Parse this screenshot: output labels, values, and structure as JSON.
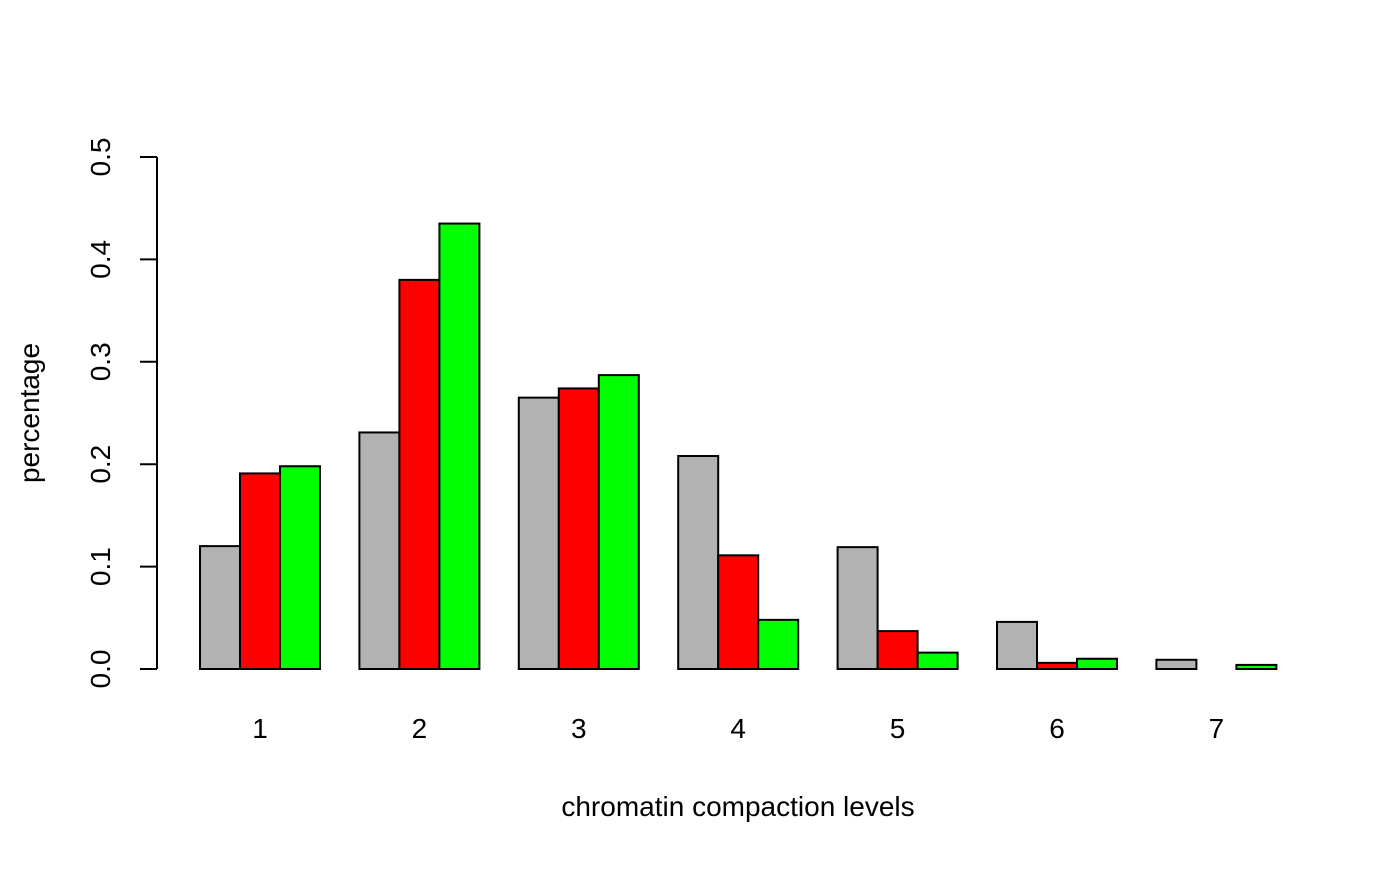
{
  "chart_data": {
    "type": "bar",
    "xlabel": "chromatin compaction levels",
    "ylabel": "percentage",
    "ylim": [
      0,
      0.5
    ],
    "yticks": [
      "0.0",
      "0.1",
      "0.2",
      "0.3",
      "0.4",
      "0.5"
    ],
    "categories": [
      "1",
      "2",
      "3",
      "4",
      "5",
      "6",
      "7"
    ],
    "grid": false,
    "legend": "none",
    "colors": [
      "#b2b2b2",
      "#ff0000",
      "#00ff00"
    ],
    "series": [
      {
        "values": [
          0.12,
          0.231,
          0.265,
          0.208,
          0.119,
          0.046,
          0.009
        ]
      },
      {
        "values": [
          0.191,
          0.38,
          0.274,
          0.111,
          0.037,
          0.006,
          0.0
        ]
      },
      {
        "values": [
          0.198,
          0.435,
          0.287,
          0.048,
          0.016,
          0.01,
          0.004
        ]
      }
    ]
  }
}
